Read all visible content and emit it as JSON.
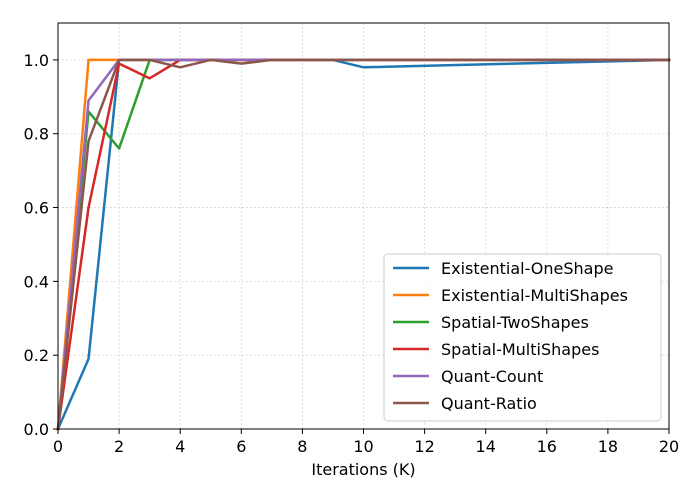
{
  "chart_data": {
    "type": "line",
    "xlabel": "Iterations (K)",
    "ylabel": "",
    "xlim": [
      0,
      20
    ],
    "ylim": [
      0,
      1.1
    ],
    "xticks": [
      0,
      2,
      4,
      6,
      8,
      10,
      12,
      14,
      16,
      18,
      20
    ],
    "yticks": [
      0.0,
      0.2,
      0.4,
      0.6,
      0.8,
      1.0
    ],
    "xtick_labels": [
      "0",
      "2",
      "4",
      "6",
      "8",
      "10",
      "12",
      "14",
      "16",
      "18",
      "20"
    ],
    "ytick_labels": [
      "0.0",
      "0.2",
      "0.4",
      "0.6",
      "0.8",
      "1.0"
    ],
    "grid": true,
    "legend_position": "bottom-right",
    "series": [
      {
        "name": "Existential-OneShape",
        "color": "#1f77b4",
        "x": [
          0,
          1,
          2,
          3,
          4,
          5,
          6,
          7,
          8,
          9,
          10,
          20
        ],
        "y": [
          0.0,
          0.19,
          1.0,
          1.0,
          1.0,
          1.0,
          1.0,
          1.0,
          1.0,
          1.0,
          0.98,
          1.0
        ]
      },
      {
        "name": "Existential-MultiShapes",
        "color": "#ff7f0e",
        "x": [
          0,
          1,
          2,
          3,
          4,
          5,
          6,
          7,
          8,
          9,
          10,
          20
        ],
        "y": [
          0.0,
          1.0,
          1.0,
          1.0,
          1.0,
          1.0,
          1.0,
          1.0,
          1.0,
          1.0,
          1.0,
          1.0
        ]
      },
      {
        "name": "Spatial-TwoShapes",
        "color": "#2ca02c",
        "x": [
          0,
          1,
          2,
          3,
          4,
          5,
          6,
          7,
          8,
          9,
          10,
          20
        ],
        "y": [
          0.0,
          0.86,
          0.76,
          1.0,
          1.0,
          1.0,
          1.0,
          1.0,
          1.0,
          1.0,
          1.0,
          1.0
        ]
      },
      {
        "name": "Spatial-MultiShapes",
        "color": "#d62728",
        "x": [
          0,
          1,
          2,
          3,
          4,
          5,
          6,
          7,
          8,
          9,
          10,
          20
        ],
        "y": [
          0.0,
          0.6,
          0.99,
          0.95,
          1.0,
          1.0,
          1.0,
          1.0,
          1.0,
          1.0,
          1.0,
          1.0
        ]
      },
      {
        "name": "Quant-Count",
        "color": "#9467bd",
        "x": [
          0,
          1,
          2,
          3,
          4,
          5,
          6,
          7,
          8,
          9,
          10,
          20
        ],
        "y": [
          0.0,
          0.89,
          1.0,
          1.0,
          1.0,
          1.0,
          1.0,
          1.0,
          1.0,
          1.0,
          1.0,
          1.0
        ]
      },
      {
        "name": "Quant-Ratio",
        "color": "#8c564b",
        "x": [
          0,
          1,
          2,
          3,
          4,
          5,
          6,
          7,
          8,
          9,
          10,
          20
        ],
        "y": [
          0.0,
          0.78,
          1.0,
          1.0,
          0.98,
          1.0,
          0.99,
          1.0,
          1.0,
          1.0,
          1.0,
          1.0
        ]
      }
    ]
  }
}
